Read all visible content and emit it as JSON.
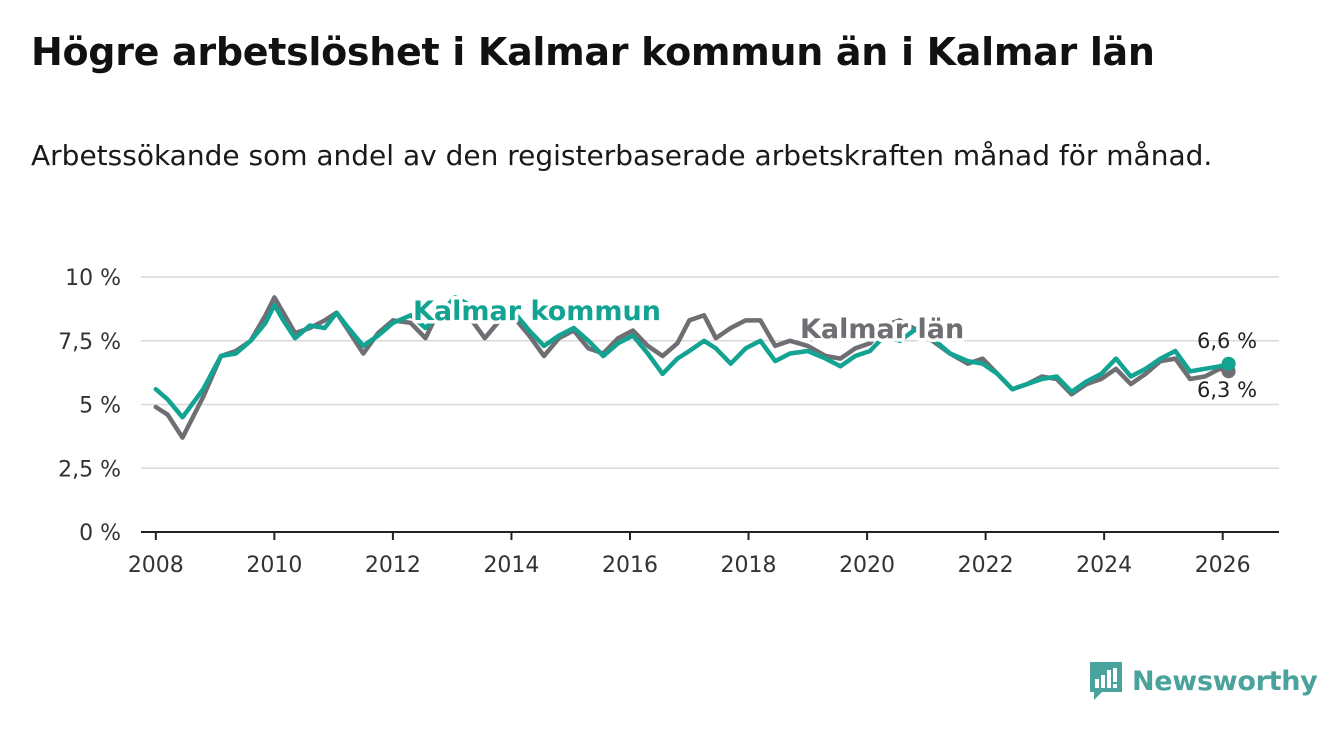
{
  "header": {
    "title": "Högre arbetslöshet i Kalmar kommun än i Kalmar län",
    "subtitle": "Arbetssökande som andel av den registerbaserade arbetskraften månad för månad."
  },
  "brand": {
    "name": "Newsworthy",
    "icon": "newsworthy-logo-icon",
    "color": "#49a29b"
  },
  "colors": {
    "kommun": "#12a393",
    "lan": "#6e6e73",
    "grid": "#d9d9d9",
    "axis": "#222222"
  },
  "chart_data": {
    "type": "line",
    "title": "Högre arbetslöshet i Kalmar kommun än i Kalmar län",
    "xlabel": "",
    "ylabel": "",
    "xlim": [
      2007.75,
      2026.95
    ],
    "ylim": [
      0,
      10
    ],
    "yticks": [
      0,
      2.5,
      5,
      7.5,
      10
    ],
    "ytick_labels": [
      "0 %",
      "2,5 %",
      "5 %",
      "7,5 %",
      "10 %"
    ],
    "xticks": [
      2008,
      2010,
      2012,
      2014,
      2016,
      2018,
      2020,
      2022,
      2024,
      2026
    ],
    "xtick_labels": [
      "2008",
      "2010",
      "2012",
      "2014",
      "2016",
      "2018",
      "2020",
      "2022",
      "2024",
      "2026"
    ],
    "grid": true,
    "series": [
      {
        "name": "Kalmar län",
        "label": "Kalmar län",
        "end_label": "6,3 %",
        "x": [
          2008.0,
          2008.2,
          2008.45,
          2008.8,
          2009.1,
          2009.35,
          2009.6,
          2009.85,
          2010.0,
          2010.15,
          2010.35,
          2010.6,
          2010.85,
          2011.05,
          2011.25,
          2011.5,
          2011.75,
          2012.0,
          2012.3,
          2012.55,
          2012.8,
          2013.05,
          2013.3,
          2013.55,
          2013.8,
          2014.05,
          2014.3,
          2014.55,
          2014.8,
          2015.05,
          2015.3,
          2015.55,
          2015.8,
          2016.05,
          2016.3,
          2016.55,
          2016.8,
          2017.0,
          2017.25,
          2017.45,
          2017.7,
          2017.95,
          2018.2,
          2018.45,
          2018.7,
          2019.0,
          2019.3,
          2019.55,
          2019.8,
          2020.05,
          2020.3,
          2020.55,
          2020.85,
          2021.1,
          2021.4,
          2021.7,
          2021.95,
          2022.2,
          2022.45,
          2022.7,
          2022.95,
          2023.2,
          2023.45,
          2023.7,
          2023.95,
          2024.2,
          2024.45,
          2024.7,
          2024.95,
          2025.2,
          2025.45,
          2025.7,
          2025.95,
          2026.1
        ],
        "values": [
          4.9,
          4.6,
          3.7,
          5.3,
          6.9,
          7.1,
          7.5,
          8.5,
          9.2,
          8.6,
          7.8,
          8.0,
          8.3,
          8.6,
          7.9,
          7.0,
          7.8,
          8.3,
          8.2,
          7.6,
          8.8,
          8.9,
          8.4,
          7.6,
          8.3,
          8.4,
          7.7,
          6.9,
          7.6,
          7.9,
          7.2,
          7.0,
          7.6,
          7.9,
          7.3,
          6.9,
          7.4,
          8.3,
          8.5,
          7.6,
          8.0,
          8.3,
          8.3,
          7.3,
          7.5,
          7.3,
          6.9,
          6.8,
          7.2,
          7.4,
          8.1,
          8.3,
          7.9,
          7.5,
          7.0,
          6.6,
          6.8,
          6.2,
          5.6,
          5.8,
          6.1,
          6.0,
          5.4,
          5.8,
          6.0,
          6.4,
          5.8,
          6.2,
          6.7,
          6.8,
          6.0,
          6.1,
          6.4,
          6.3
        ]
      },
      {
        "name": "Kalmar kommun",
        "label": "Kalmar kommun",
        "end_label": "6,6 %",
        "x": [
          2008.0,
          2008.2,
          2008.45,
          2008.8,
          2009.1,
          2009.35,
          2009.6,
          2009.85,
          2010.0,
          2010.15,
          2010.35,
          2010.6,
          2010.85,
          2011.05,
          2011.25,
          2011.5,
          2011.75,
          2012.0,
          2012.3,
          2012.55,
          2012.8,
          2013.05,
          2013.3,
          2013.55,
          2013.8,
          2014.05,
          2014.3,
          2014.55,
          2014.8,
          2015.05,
          2015.3,
          2015.55,
          2015.8,
          2016.05,
          2016.3,
          2016.55,
          2016.8,
          2017.0,
          2017.25,
          2017.45,
          2017.7,
          2017.95,
          2018.2,
          2018.45,
          2018.7,
          2019.0,
          2019.3,
          2019.55,
          2019.8,
          2020.05,
          2020.3,
          2020.55,
          2020.85,
          2021.1,
          2021.4,
          2021.7,
          2021.95,
          2022.2,
          2022.45,
          2022.7,
          2022.95,
          2023.2,
          2023.45,
          2023.7,
          2023.95,
          2024.2,
          2024.45,
          2024.7,
          2024.95,
          2025.2,
          2025.45,
          2025.7,
          2025.95,
          2026.1
        ],
        "values": [
          5.6,
          5.2,
          4.5,
          5.6,
          6.9,
          7.0,
          7.5,
          8.2,
          8.9,
          8.3,
          7.6,
          8.1,
          8.0,
          8.6,
          8.0,
          7.3,
          7.7,
          8.2,
          8.5,
          8.0,
          8.6,
          9.2,
          8.9,
          8.3,
          8.5,
          8.6,
          7.9,
          7.3,
          7.7,
          8.0,
          7.5,
          6.9,
          7.4,
          7.7,
          7.0,
          6.2,
          6.8,
          7.1,
          7.5,
          7.2,
          6.6,
          7.2,
          7.5,
          6.7,
          7.0,
          7.1,
          6.8,
          6.5,
          6.9,
          7.1,
          7.7,
          7.5,
          8.0,
          7.6,
          7.0,
          6.7,
          6.6,
          6.2,
          5.6,
          5.8,
          6.0,
          6.1,
          5.5,
          5.9,
          6.2,
          6.8,
          6.1,
          6.4,
          6.8,
          7.1,
          6.3,
          6.4,
          6.5,
          6.6
        ]
      }
    ]
  }
}
